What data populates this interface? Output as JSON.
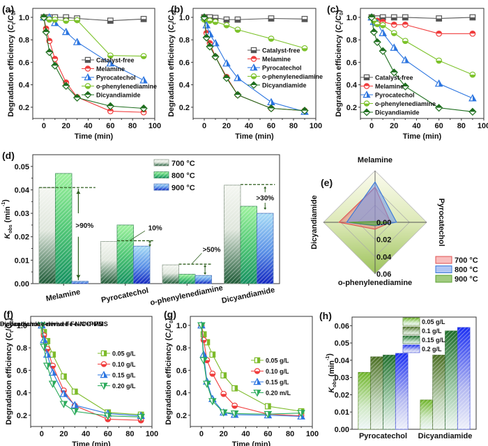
{
  "figure": {
    "colors": {
      "catalyst_free": "#555555",
      "melamine": "#f03c3c",
      "pyrocatechol": "#2a74e0",
      "o_phenylenediamine": "#7cc22a",
      "dicyandiamide": "#1e6e1e",
      "t700": "#f2a0a0",
      "t800": "#8fb8ee",
      "t900": "#a8cc6a",
      "dose_005": "#7dbb2a",
      "dose_010": "#f03c3c",
      "dose_015": "#2a74e0",
      "dose_020": "#2aaa5a",
      "annotation": "#2e5e1e"
    }
  },
  "chart_data": [
    {
      "id": "a",
      "panel_label": "(a)",
      "type": "line",
      "title": "",
      "xlabel": "Time (min)",
      "ylabel": "Degradation efficiency (C_t/C_0)",
      "ylabel_parts": [
        "Degradation efficiency (",
        "C",
        "t",
        "/",
        "C",
        "0",
        ")"
      ],
      "xlim": [
        -10,
        100
      ],
      "ylim": [
        0.1,
        1.08
      ],
      "xticks": [
        0,
        20,
        40,
        60,
        80,
        100
      ],
      "yticks": [
        0.2,
        0.4,
        0.6,
        0.8,
        1.0
      ],
      "ytick_labels": [
        "0.2",
        "0.4",
        "0.6",
        "0.8",
        "1.0"
      ],
      "legend_position": "center-right",
      "series": [
        {
          "name": "Catalyst-free",
          "marker": "square",
          "color_key": "catalyst_free",
          "x": [
            0,
            5,
            10,
            20,
            30,
            60,
            90
          ],
          "y": [
            1.0,
            1.0,
            1.0,
            1.0,
            0.99,
            0.97,
            0.985
          ]
        },
        {
          "name": "Melamine",
          "marker": "circle",
          "color_key": "melamine",
          "x": [
            0,
            2,
            5,
            10,
            20,
            30,
            60,
            90
          ],
          "y": [
            1.0,
            0.9,
            0.79,
            0.63,
            0.42,
            0.29,
            0.165,
            0.155
          ]
        },
        {
          "name": "Pyrocatechol",
          "marker": "triangle",
          "color_key": "pyrocatechol",
          "x": [
            0,
            5,
            10,
            20,
            30,
            60,
            90
          ],
          "y": [
            1.0,
            1.0,
            0.95,
            0.87,
            0.78,
            0.59,
            0.44
          ]
        },
        {
          "name": "o-phenylenediamine",
          "marker": "circle-half",
          "color_key": "o_phenylenediamine",
          "x": [
            0,
            5,
            10,
            20,
            30,
            60,
            90
          ],
          "y": [
            1.0,
            0.98,
            0.98,
            0.97,
            0.975,
            0.66,
            0.655
          ]
        },
        {
          "name": "Dicyandiamide",
          "marker": "diamond",
          "color_key": "dicyandiamide",
          "x": [
            0,
            2,
            5,
            10,
            20,
            30,
            60,
            90
          ],
          "y": [
            1.0,
            0.87,
            0.69,
            0.57,
            0.39,
            0.285,
            0.21,
            0.19
          ]
        }
      ]
    },
    {
      "id": "b",
      "panel_label": "(b)",
      "type": "line",
      "title": "",
      "xlabel": "Time (min)",
      "ylabel": "Degradation efficiency (C_t/C_0)",
      "ylabel_parts": [
        "Degradation efficiency (",
        "C",
        "t",
        "/",
        "C",
        "0",
        ")"
      ],
      "xlim": [
        -10,
        100
      ],
      "ylim": [
        0.1,
        1.08
      ],
      "xticks": [
        0,
        20,
        40,
        60,
        80,
        100
      ],
      "yticks": [
        0.2,
        0.4,
        0.6,
        0.8,
        1.0
      ],
      "ytick_labels": [
        "0.2",
        "0.4",
        "0.6",
        "0.8",
        "1.0"
      ],
      "legend_position": "center-right",
      "series": [
        {
          "name": "Catalyst-free",
          "marker": "square",
          "color_key": "catalyst_free",
          "x": [
            0,
            5,
            10,
            20,
            30,
            60,
            90
          ],
          "y": [
            1.0,
            1.0,
            0.995,
            0.98,
            0.98,
            0.99,
            0.985
          ]
        },
        {
          "name": "Melamine",
          "marker": "circle",
          "color_key": "melamine",
          "x": [
            0,
            2,
            5,
            10,
            20,
            30,
            60,
            90
          ],
          "y": [
            1.0,
            0.86,
            0.77,
            0.65,
            0.47,
            0.31,
            0.19,
            0.17
          ]
        },
        {
          "name": "Pyrocatechol",
          "marker": "triangle",
          "color_key": "pyrocatechol",
          "x": [
            0,
            2,
            5,
            10,
            20,
            30,
            60,
            90
          ],
          "y": [
            1.0,
            0.93,
            0.85,
            0.77,
            0.59,
            0.46,
            0.245,
            0.16
          ]
        },
        {
          "name": "o-phenylenediamine",
          "marker": "circle-half",
          "color_key": "o_phenylenediamine",
          "x": [
            0,
            5,
            10,
            20,
            30,
            60,
            90
          ],
          "y": [
            0.98,
            0.97,
            0.96,
            0.93,
            0.89,
            0.81,
            0.725
          ]
        },
        {
          "name": "Dicyandiamide",
          "marker": "diamond",
          "color_key": "dicyandiamide",
          "x": [
            0,
            2,
            5,
            10,
            20,
            30,
            60,
            90
          ],
          "y": [
            1.0,
            0.82,
            0.74,
            0.65,
            0.46,
            0.31,
            0.19,
            0.17
          ]
        }
      ]
    },
    {
      "id": "c",
      "panel_label": "(c)",
      "type": "line",
      "title": "",
      "xlabel": "Time (min)",
      "ylabel": "Degradation efficiency (C_t/C_0)",
      "ylabel_parts": [
        "Degradation efficiency (",
        "C",
        "t",
        "/",
        "C",
        "0",
        ")"
      ],
      "xlim": [
        -10,
        100
      ],
      "ylim": [
        0.1,
        1.08
      ],
      "xticks": [
        0,
        20,
        40,
        60,
        80,
        100
      ],
      "yticks": [
        0.2,
        0.4,
        0.6,
        0.8,
        1.0
      ],
      "ytick_labels": [
        "0.2",
        "0.4",
        "0.6",
        "0.8",
        "1.0"
      ],
      "legend_position": "bottom-left",
      "series": [
        {
          "name": "Catalyst-free",
          "marker": "square",
          "color_key": "catalyst_free",
          "x": [
            0,
            5,
            10,
            20,
            30,
            60,
            90
          ],
          "y": [
            1.0,
            0.99,
            1.0,
            1.0,
            1.0,
            0.99,
            1.0
          ]
        },
        {
          "name": "Melamine",
          "marker": "circle",
          "color_key": "melamine",
          "x": [
            0,
            5,
            10,
            20,
            30,
            60,
            90
          ],
          "y": [
            1.0,
            0.97,
            0.96,
            0.935,
            0.935,
            0.855,
            0.855
          ]
        },
        {
          "name": "Pyrocatechol",
          "marker": "triangle",
          "color_key": "pyrocatechol",
          "x": [
            0,
            2,
            5,
            10,
            20,
            30,
            60,
            90
          ],
          "y": [
            1.0,
            0.96,
            0.95,
            0.86,
            0.73,
            0.62,
            0.41,
            0.28
          ]
        },
        {
          "name": "o-phenylenediamine",
          "marker": "circle-half",
          "color_key": "o_phenylenediamine",
          "x": [
            0,
            2,
            5,
            10,
            20,
            30,
            60,
            90
          ],
          "y": [
            1.0,
            0.97,
            0.94,
            0.93,
            0.86,
            0.79,
            0.615,
            0.49
          ]
        },
        {
          "name": "Dicyandiamide",
          "marker": "diamond",
          "color_key": "dicyandiamide",
          "x": [
            0,
            2,
            5,
            10,
            20,
            30,
            60,
            90
          ],
          "y": [
            1.0,
            0.87,
            0.78,
            0.7,
            0.51,
            0.385,
            0.195,
            0.16
          ]
        }
      ]
    },
    {
      "id": "d",
      "panel_label": "(d)",
      "type": "bar",
      "title": "",
      "xlabel": "",
      "ylabel": "K_obs (min^-1)",
      "ylim": [
        0,
        0.055
      ],
      "yticks": [
        0,
        0.01,
        0.02,
        0.03,
        0.04,
        0.05
      ],
      "ytick_labels": [
        "0.00",
        "0.01",
        "0.02",
        "0.03",
        "0.04",
        "0.05"
      ],
      "categories": [
        "Melamine",
        "Pyrocatechol",
        "o-phenylenediamine",
        "Dicyandiamide"
      ],
      "legend_position": "top-center",
      "series": [
        {
          "name": "700 °C",
          "values": [
            0.041,
            0.018,
            0.008,
            0.042
          ]
        },
        {
          "name": "800 °C",
          "values": [
            0.047,
            0.025,
            0.004,
            0.033
          ]
        },
        {
          "name": "900 °C",
          "values": [
            0.001,
            0.016,
            0.0035,
            0.03
          ]
        }
      ],
      "annotations": [
        ">90%",
        "10%",
        ">50%",
        ">30%"
      ]
    },
    {
      "id": "e",
      "panel_label": "(e)",
      "type": "radar",
      "title": "",
      "axes": [
        "Melamine",
        "Pyrocatechol",
        "o-phenylenediamine",
        "Dicyandiamide"
      ],
      "rlim": [
        0,
        0.06
      ],
      "rticks": [
        0,
        0.02,
        0.04,
        0.06
      ],
      "rtick_labels": [
        "0.00",
        "0.02",
        "0.04",
        "0.06"
      ],
      "legend_position": "bottom-right",
      "series": [
        {
          "name": "700 °C",
          "values": [
            0.041,
            0.018,
            0.008,
            0.042
          ]
        },
        {
          "name": "800 °C",
          "values": [
            0.047,
            0.025,
            0.004,
            0.033
          ]
        },
        {
          "name": "900 °C",
          "values": [
            0.001,
            0.016,
            0.0035,
            0.03
          ]
        }
      ]
    },
    {
      "id": "f",
      "panel_label": "(f)",
      "type": "line",
      "title": "Pyrocatechol-derived Fe-N/C+PMS",
      "xlabel": "Time (min)",
      "ylabel": "Degradation efficiency (C_t/C_0)",
      "ylabel_parts": [
        "Degradation efficiency (",
        "C",
        "t",
        "/",
        "C",
        "0",
        ")"
      ],
      "xlim": [
        -10,
        100
      ],
      "ylim": [
        0.1,
        1.08
      ],
      "xticks": [
        0,
        20,
        40,
        60,
        80,
        100
      ],
      "yticks": [
        0.2,
        0.4,
        0.6,
        0.8,
        1.0
      ],
      "ytick_labels": [
        "0.2",
        "0.4",
        "0.6",
        "0.8",
        "1.0"
      ],
      "legend_position": "right",
      "series": [
        {
          "name": "0.05 g/L",
          "marker": "square-half",
          "color_key": "dose_005",
          "x": [
            0,
            2,
            5,
            10,
            20,
            30,
            60,
            90
          ],
          "y": [
            1.0,
            0.94,
            0.86,
            0.74,
            0.545,
            0.41,
            0.225,
            0.205
          ]
        },
        {
          "name": "0.10 g/L",
          "marker": "circle-half",
          "color_key": "dose_010",
          "x": [
            0,
            2,
            5,
            10,
            20,
            30,
            60,
            90
          ],
          "y": [
            1.0,
            0.91,
            0.79,
            0.64,
            0.42,
            0.285,
            0.165,
            0.155
          ]
        },
        {
          "name": "0.15 g/L",
          "marker": "triangle",
          "color_key": "dose_015",
          "x": [
            0,
            2,
            5,
            10,
            20,
            30,
            60,
            90
          ],
          "y": [
            1.0,
            0.87,
            0.74,
            0.58,
            0.39,
            0.29,
            0.215,
            0.195
          ]
        },
        {
          "name": "0.20 g/L",
          "marker": "triangle-down",
          "color_key": "dose_020",
          "x": [
            0,
            2,
            5,
            10,
            20,
            30,
            60,
            90
          ],
          "y": [
            1.0,
            0.81,
            0.64,
            0.48,
            0.3,
            0.235,
            0.195,
            0.185
          ]
        }
      ]
    },
    {
      "id": "g",
      "panel_label": "(g)",
      "type": "line",
      "title": "Dicyandiamine-derived Fe-N/C+PMS",
      "xlabel": "Time (min)",
      "ylabel": "Degradation efficiency (C_t/C_0)",
      "ylabel_parts": [
        "Degradation efficiency (",
        "C",
        "t",
        "/",
        "C",
        "0",
        ")"
      ],
      "xlim": [
        -10,
        100
      ],
      "ylim": [
        0.1,
        1.08
      ],
      "xticks": [
        0,
        20,
        40,
        60,
        80,
        100
      ],
      "yticks": [
        0.2,
        0.4,
        0.6,
        0.8,
        1.0
      ],
      "ytick_labels": [
        "0.2",
        "0.4",
        "0.6",
        "0.8",
        "1.0"
      ],
      "legend_position": "right",
      "series": [
        {
          "name": "0.05 g/L",
          "marker": "square-half",
          "color_key": "dose_005",
          "x": [
            0,
            2,
            5,
            10,
            20,
            30,
            60,
            90
          ],
          "y": [
            1.0,
            0.92,
            0.85,
            0.74,
            0.555,
            0.44,
            0.28,
            0.235
          ]
        },
        {
          "name": "0.10 g/L",
          "marker": "circle-half",
          "color_key": "dose_010",
          "x": [
            0,
            2,
            5,
            10,
            20,
            30,
            60,
            90
          ],
          "y": [
            1.0,
            0.87,
            0.69,
            0.57,
            0.39,
            0.285,
            0.21,
            0.195
          ]
        },
        {
          "name": "0.15 g/L",
          "marker": "triangle",
          "color_key": "dose_015",
          "x": [
            0,
            2,
            5,
            10,
            20,
            30,
            60,
            90
          ],
          "y": [
            1.0,
            0.74,
            0.5,
            0.345,
            0.225,
            0.205,
            0.2,
            0.19
          ]
        },
        {
          "name": "0.20 m/L",
          "marker": "triangle-down",
          "color_key": "dose_020",
          "x": [
            0,
            2,
            5,
            10,
            20,
            30,
            60,
            90
          ],
          "y": [
            1.0,
            0.69,
            0.48,
            0.325,
            0.225,
            0.215,
            0.21,
            0.22
          ]
        }
      ]
    },
    {
      "id": "h",
      "panel_label": "(h)",
      "type": "bar",
      "title": "",
      "xlabel": "",
      "ylabel": "K_obs (min^-1)",
      "ylim": [
        0,
        0.065
      ],
      "yticks": [
        0,
        0.01,
        0.02,
        0.03,
        0.04,
        0.05,
        0.06
      ],
      "ytick_labels": [
        "0.00",
        "0.01",
        "0.02",
        "0.03",
        "0.04",
        "0.05",
        "0.06"
      ],
      "categories": [
        "Pyrocatechol",
        "Dicyandiamide"
      ],
      "legend_position": "top-center",
      "series": [
        {
          "name": "0.05 g/L",
          "values": [
            0.033,
            0.017
          ]
        },
        {
          "name": "0.1 g/L",
          "values": [
            0.042,
            0.043
          ]
        },
        {
          "name": "0.15 g/L",
          "values": [
            0.043,
            0.057
          ]
        },
        {
          "name": "0.2 g/L",
          "values": [
            0.044,
            0.059
          ]
        }
      ]
    }
  ]
}
